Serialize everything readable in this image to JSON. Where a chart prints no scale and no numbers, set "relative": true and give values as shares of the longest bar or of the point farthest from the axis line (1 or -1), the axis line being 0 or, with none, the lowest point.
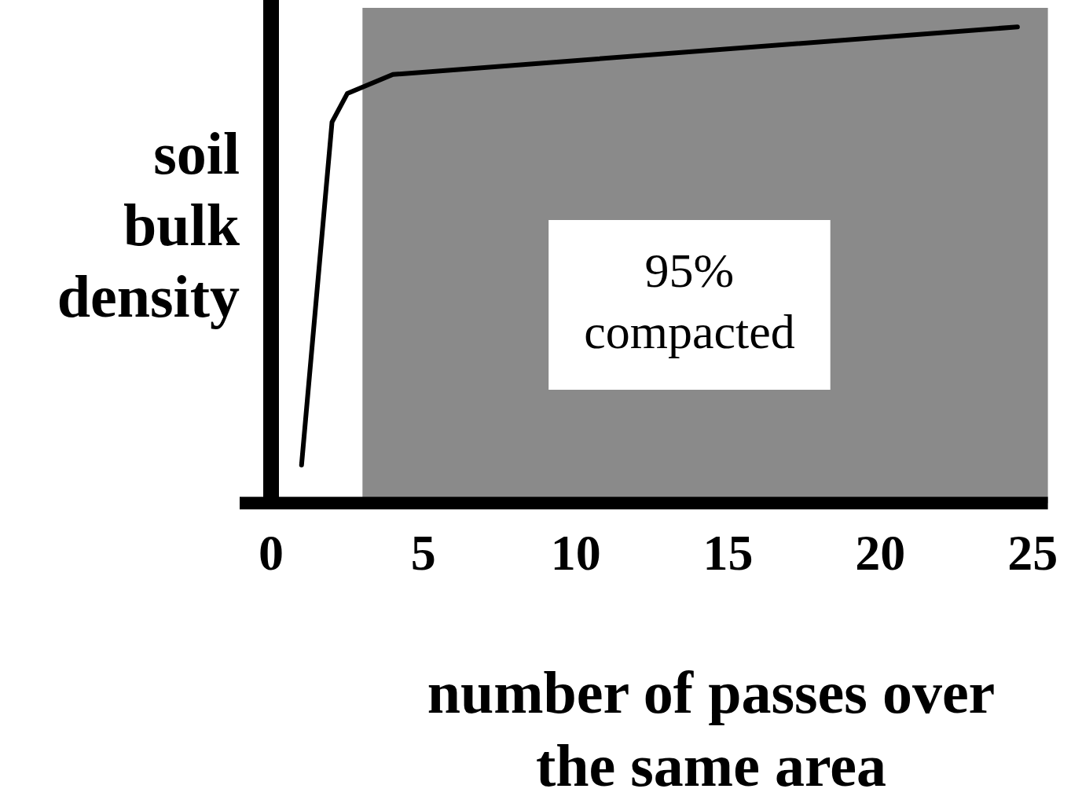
{
  "chart_data": {
    "type": "line",
    "xlabel": "number of passes over the same area",
    "ylabel": "soil bulk density",
    "relative": true,
    "x": [
      1,
      2,
      2.5,
      4,
      24.5
    ],
    "series": [
      {
        "color": "#000000",
        "values": [
          0.08,
          0.8,
          0.86,
          0.9,
          1
        ]
      }
    ],
    "xlim": [
      0,
      25.5
    ],
    "xticks": [
      0,
      5,
      10,
      15,
      20,
      25
    ],
    "bands": [
      {
        "axis": "x",
        "from": 3,
        "to": 25.5,
        "label": "95% compacted",
        "color": "#8a8a8a"
      }
    ],
    "grid": false,
    "legend": false,
    "marker": "none",
    "line_style": "solid"
  }
}
